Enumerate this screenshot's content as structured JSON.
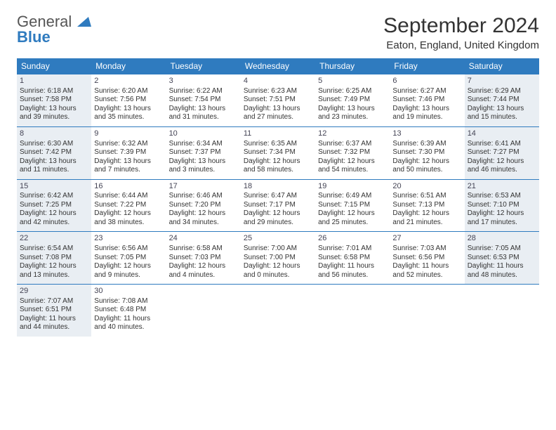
{
  "logo": {
    "line1": "General",
    "line2": "Blue"
  },
  "title": "September 2024",
  "location": "Eaton, England, United Kingdom",
  "colors": {
    "header_bg": "#2f7bbf",
    "header_text": "#ffffff",
    "shaded_bg": "#e9eef3",
    "border": "#2f7bbf",
    "text": "#333333",
    "page_bg": "#ffffff"
  },
  "typography": {
    "title_fontsize": 30,
    "location_fontsize": 15,
    "dayheader_fontsize": 12,
    "cell_fontsize": 10
  },
  "day_headers": [
    "Sunday",
    "Monday",
    "Tuesday",
    "Wednesday",
    "Thursday",
    "Friday",
    "Saturday"
  ],
  "weeks": [
    [
      {
        "n": "1",
        "shaded": true,
        "sr": "Sunrise: 6:18 AM",
        "ss": "Sunset: 7:58 PM",
        "d1": "Daylight: 13 hours",
        "d2": "and 39 minutes."
      },
      {
        "n": "2",
        "shaded": false,
        "sr": "Sunrise: 6:20 AM",
        "ss": "Sunset: 7:56 PM",
        "d1": "Daylight: 13 hours",
        "d2": "and 35 minutes."
      },
      {
        "n": "3",
        "shaded": false,
        "sr": "Sunrise: 6:22 AM",
        "ss": "Sunset: 7:54 PM",
        "d1": "Daylight: 13 hours",
        "d2": "and 31 minutes."
      },
      {
        "n": "4",
        "shaded": false,
        "sr": "Sunrise: 6:23 AM",
        "ss": "Sunset: 7:51 PM",
        "d1": "Daylight: 13 hours",
        "d2": "and 27 minutes."
      },
      {
        "n": "5",
        "shaded": false,
        "sr": "Sunrise: 6:25 AM",
        "ss": "Sunset: 7:49 PM",
        "d1": "Daylight: 13 hours",
        "d2": "and 23 minutes."
      },
      {
        "n": "6",
        "shaded": false,
        "sr": "Sunrise: 6:27 AM",
        "ss": "Sunset: 7:46 PM",
        "d1": "Daylight: 13 hours",
        "d2": "and 19 minutes."
      },
      {
        "n": "7",
        "shaded": true,
        "sr": "Sunrise: 6:29 AM",
        "ss": "Sunset: 7:44 PM",
        "d1": "Daylight: 13 hours",
        "d2": "and 15 minutes."
      }
    ],
    [
      {
        "n": "8",
        "shaded": true,
        "sr": "Sunrise: 6:30 AM",
        "ss": "Sunset: 7:42 PM",
        "d1": "Daylight: 13 hours",
        "d2": "and 11 minutes."
      },
      {
        "n": "9",
        "shaded": false,
        "sr": "Sunrise: 6:32 AM",
        "ss": "Sunset: 7:39 PM",
        "d1": "Daylight: 13 hours",
        "d2": "and 7 minutes."
      },
      {
        "n": "10",
        "shaded": false,
        "sr": "Sunrise: 6:34 AM",
        "ss": "Sunset: 7:37 PM",
        "d1": "Daylight: 13 hours",
        "d2": "and 3 minutes."
      },
      {
        "n": "11",
        "shaded": false,
        "sr": "Sunrise: 6:35 AM",
        "ss": "Sunset: 7:34 PM",
        "d1": "Daylight: 12 hours",
        "d2": "and 58 minutes."
      },
      {
        "n": "12",
        "shaded": false,
        "sr": "Sunrise: 6:37 AM",
        "ss": "Sunset: 7:32 PM",
        "d1": "Daylight: 12 hours",
        "d2": "and 54 minutes."
      },
      {
        "n": "13",
        "shaded": false,
        "sr": "Sunrise: 6:39 AM",
        "ss": "Sunset: 7:30 PM",
        "d1": "Daylight: 12 hours",
        "d2": "and 50 minutes."
      },
      {
        "n": "14",
        "shaded": true,
        "sr": "Sunrise: 6:41 AM",
        "ss": "Sunset: 7:27 PM",
        "d1": "Daylight: 12 hours",
        "d2": "and 46 minutes."
      }
    ],
    [
      {
        "n": "15",
        "shaded": true,
        "sr": "Sunrise: 6:42 AM",
        "ss": "Sunset: 7:25 PM",
        "d1": "Daylight: 12 hours",
        "d2": "and 42 minutes."
      },
      {
        "n": "16",
        "shaded": false,
        "sr": "Sunrise: 6:44 AM",
        "ss": "Sunset: 7:22 PM",
        "d1": "Daylight: 12 hours",
        "d2": "and 38 minutes."
      },
      {
        "n": "17",
        "shaded": false,
        "sr": "Sunrise: 6:46 AM",
        "ss": "Sunset: 7:20 PM",
        "d1": "Daylight: 12 hours",
        "d2": "and 34 minutes."
      },
      {
        "n": "18",
        "shaded": false,
        "sr": "Sunrise: 6:47 AM",
        "ss": "Sunset: 7:17 PM",
        "d1": "Daylight: 12 hours",
        "d2": "and 29 minutes."
      },
      {
        "n": "19",
        "shaded": false,
        "sr": "Sunrise: 6:49 AM",
        "ss": "Sunset: 7:15 PM",
        "d1": "Daylight: 12 hours",
        "d2": "and 25 minutes."
      },
      {
        "n": "20",
        "shaded": false,
        "sr": "Sunrise: 6:51 AM",
        "ss": "Sunset: 7:13 PM",
        "d1": "Daylight: 12 hours",
        "d2": "and 21 minutes."
      },
      {
        "n": "21",
        "shaded": true,
        "sr": "Sunrise: 6:53 AM",
        "ss": "Sunset: 7:10 PM",
        "d1": "Daylight: 12 hours",
        "d2": "and 17 minutes."
      }
    ],
    [
      {
        "n": "22",
        "shaded": true,
        "sr": "Sunrise: 6:54 AM",
        "ss": "Sunset: 7:08 PM",
        "d1": "Daylight: 12 hours",
        "d2": "and 13 minutes."
      },
      {
        "n": "23",
        "shaded": false,
        "sr": "Sunrise: 6:56 AM",
        "ss": "Sunset: 7:05 PM",
        "d1": "Daylight: 12 hours",
        "d2": "and 9 minutes."
      },
      {
        "n": "24",
        "shaded": false,
        "sr": "Sunrise: 6:58 AM",
        "ss": "Sunset: 7:03 PM",
        "d1": "Daylight: 12 hours",
        "d2": "and 4 minutes."
      },
      {
        "n": "25",
        "shaded": false,
        "sr": "Sunrise: 7:00 AM",
        "ss": "Sunset: 7:00 PM",
        "d1": "Daylight: 12 hours",
        "d2": "and 0 minutes."
      },
      {
        "n": "26",
        "shaded": false,
        "sr": "Sunrise: 7:01 AM",
        "ss": "Sunset: 6:58 PM",
        "d1": "Daylight: 11 hours",
        "d2": "and 56 minutes."
      },
      {
        "n": "27",
        "shaded": false,
        "sr": "Sunrise: 7:03 AM",
        "ss": "Sunset: 6:56 PM",
        "d1": "Daylight: 11 hours",
        "d2": "and 52 minutes."
      },
      {
        "n": "28",
        "shaded": true,
        "sr": "Sunrise: 7:05 AM",
        "ss": "Sunset: 6:53 PM",
        "d1": "Daylight: 11 hours",
        "d2": "and 48 minutes."
      }
    ],
    [
      {
        "n": "29",
        "shaded": true,
        "sr": "Sunrise: 7:07 AM",
        "ss": "Sunset: 6:51 PM",
        "d1": "Daylight: 11 hours",
        "d2": "and 44 minutes."
      },
      {
        "n": "30",
        "shaded": false,
        "sr": "Sunrise: 7:08 AM",
        "ss": "Sunset: 6:48 PM",
        "d1": "Daylight: 11 hours",
        "d2": "and 40 minutes."
      },
      null,
      null,
      null,
      null,
      null
    ]
  ]
}
